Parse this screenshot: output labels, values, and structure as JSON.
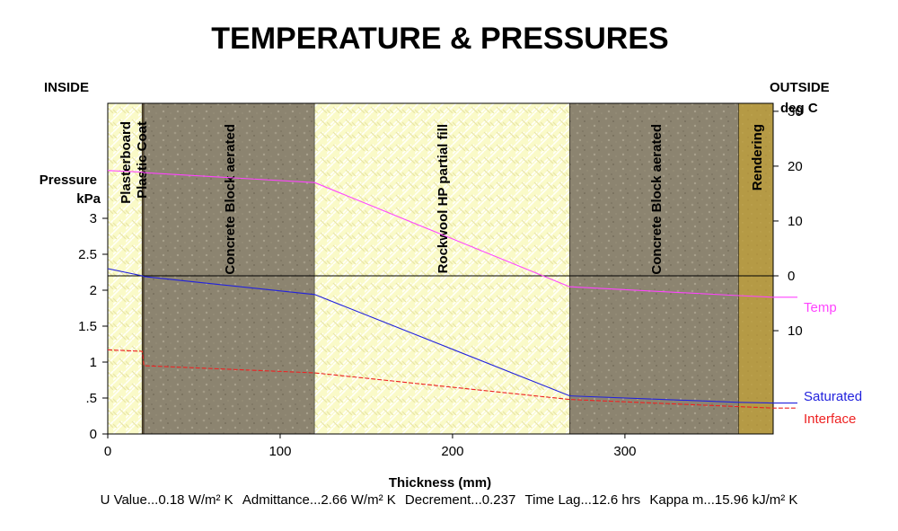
{
  "title": "TEMPERATURE & PRESSURES",
  "inside_label": "INSIDE",
  "outside_label": "OUTSIDE",
  "right_axis_unit": "deg C",
  "left_axis_title_line1": "Pressure",
  "left_axis_title_line2": "kPa",
  "x_axis_label": "Thickness (mm)",
  "stats": {
    "u_value": "U Value...0.18 W/m² K",
    "admittance": "Admittance...2.66 W/m² K",
    "decrement": "Decrement...0.237",
    "time_lag": "Time Lag...12.6 hrs",
    "kappa": "Kappa m...15.96 kJ/m² K"
  },
  "colors": {
    "temp": "#ff44ff",
    "saturated": "#2222dd",
    "interface": "#ee2222",
    "insulation": "#fafac8",
    "block": "#8c8470",
    "rendering": "#b59a45",
    "plaster_coat": "#6b5a3a"
  },
  "chart_data": {
    "type": "line",
    "x_label": "Thickness (mm)",
    "x_ticks": [
      0,
      100,
      200,
      300
    ],
    "xlim": [
      0,
      386
    ],
    "left_axis": {
      "label": "Pressure kPa",
      "ylim": [
        0,
        4.6
      ],
      "ticks": [
        0,
        0.5,
        1,
        1.5,
        2,
        2.5,
        3
      ],
      "tick_labels": [
        "0",
        ".5",
        "1",
        "1.5",
        "2",
        "2.5",
        "3"
      ]
    },
    "right_axis": {
      "label": "deg C",
      "ticks": [
        30,
        20,
        10,
        0,
        -10
      ],
      "tick_labels": [
        "30",
        "20",
        "10",
        "0",
        "10"
      ],
      "zero_value": 0,
      "zero_on_left_axis_kpa": 2.2,
      "kpa_per_deg": 0.0763
    },
    "layers": [
      {
        "name": "Plasterboard",
        "start": 0,
        "end": 20,
        "material": "insulation"
      },
      {
        "name": "Plastic Coat",
        "start": 20,
        "end": 21,
        "material": "plaster_coat"
      },
      {
        "name": "Concrete Block aerated",
        "start": 21,
        "end": 120,
        "material": "block"
      },
      {
        "name": "Rockwool HP partial fill",
        "start": 120,
        "end": 268,
        "material": "insulation"
      },
      {
        "name": "Concrete Block aerated",
        "start": 268,
        "end": 366,
        "material": "block"
      },
      {
        "name": "Rendering",
        "start": 366,
        "end": 386,
        "material": "rendering"
      }
    ],
    "series": [
      {
        "name": "Temp",
        "axis": "right",
        "color": "#ff44ff",
        "x": [
          0,
          20,
          21,
          120,
          268,
          366,
          386
        ],
        "y": [
          19.2,
          18.9,
          18.8,
          17.0,
          -2.0,
          -3.6,
          -3.9
        ]
      },
      {
        "name": "Saturated",
        "axis": "left",
        "color": "#2222dd",
        "x": [
          0,
          20,
          21,
          120,
          268,
          366,
          386
        ],
        "y": [
          2.3,
          2.2,
          2.19,
          1.94,
          0.53,
          0.44,
          0.43
        ]
      },
      {
        "name": "Interface",
        "axis": "left",
        "color": "#ee2222",
        "x": [
          0,
          20,
          21,
          120,
          268,
          366,
          386
        ],
        "y": [
          1.17,
          1.15,
          0.95,
          0.85,
          0.48,
          0.38,
          0.36
        ]
      }
    ]
  }
}
